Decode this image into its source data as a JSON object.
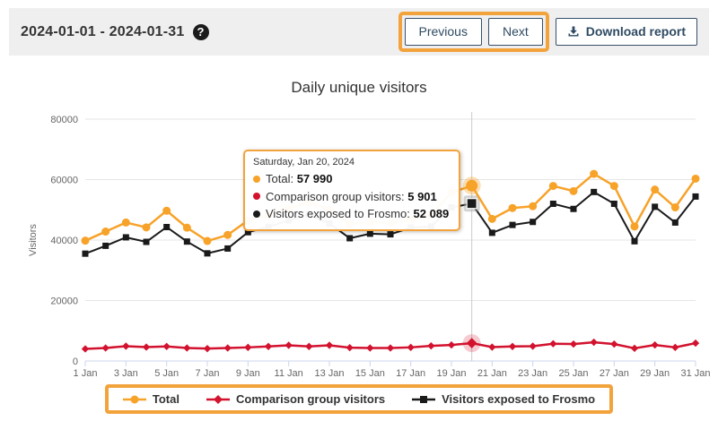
{
  "header": {
    "date_range": "2024-01-01 - 2024-01-31",
    "help_icon": "?",
    "previous_label": "Previous",
    "next_label": "Next",
    "download_label": "Download report"
  },
  "colors": {
    "accent_orange": "#F2A33C",
    "series_total": "#F7A229",
    "series_comparison": "#D2122E",
    "series_frosmo": "#1A1A1A",
    "grid": "#E6E6E6",
    "axis_line": "#CCD6EB",
    "crosshair": "#CCCCCC",
    "tick_text": "#666666"
  },
  "chart_data": {
    "type": "line",
    "title": "Daily unique visitors",
    "xlabel": "",
    "ylabel": "Visitors",
    "ylim": [
      0,
      80000
    ],
    "yticks": [
      0,
      20000,
      40000,
      60000,
      80000
    ],
    "grid": true,
    "legend_position": "bottom",
    "highlight_index": 19,
    "categories": [
      "1 Jan",
      "2 Jan",
      "3 Jan",
      "4 Jan",
      "5 Jan",
      "6 Jan",
      "7 Jan",
      "8 Jan",
      "9 Jan",
      "10 Jan",
      "11 Jan",
      "12 Jan",
      "13 Jan",
      "14 Jan",
      "15 Jan",
      "16 Jan",
      "17 Jan",
      "18 Jan",
      "19 Jan",
      "20 Jan",
      "21 Jan",
      "22 Jan",
      "23 Jan",
      "24 Jan",
      "25 Jan",
      "26 Jan",
      "27 Jan",
      "28 Jan",
      "29 Jan",
      "30 Jan",
      "31 Jan"
    ],
    "series": [
      {
        "name": "Total",
        "color": "#F7A229",
        "marker": "circle",
        "values": [
          39800,
          42800,
          45800,
          44200,
          49700,
          44100,
          39700,
          41700,
          46500,
          48300,
          50500,
          52500,
          50000,
          45300,
          46000,
          45700,
          46800,
          48300,
          55700,
          57990,
          47000,
          50600,
          51200,
          57900,
          56200,
          61900,
          57900,
          44500,
          56700,
          50800,
          60300
        ]
      },
      {
        "name": "Comparison group visitors",
        "color": "#D2122E",
        "marker": "diamond",
        "values": [
          4000,
          4300,
          4900,
          4600,
          4800,
          4300,
          4100,
          4300,
          4500,
          4800,
          5200,
          4800,
          5200,
          4400,
          4300,
          4300,
          4500,
          5000,
          5300,
          5901,
          4600,
          4800,
          4900,
          5700,
          5600,
          6200,
          5600,
          4200,
          5300,
          4500,
          5900
        ]
      },
      {
        "name": "Visitors exposed to Frosmo",
        "color": "#1A1A1A",
        "marker": "square",
        "values": [
          35500,
          38100,
          40900,
          39400,
          44300,
          39500,
          35600,
          37200,
          42600,
          44400,
          46500,
          48500,
          45500,
          40600,
          42100,
          41900,
          44100,
          44500,
          50800,
          52089,
          42400,
          45000,
          46000,
          52000,
          50300,
          55900,
          52000,
          39600,
          51000,
          45800,
          54400
        ]
      }
    ]
  },
  "tooltip": {
    "date": "Saturday, Jan 20, 2024",
    "rows": [
      {
        "label": "Total",
        "value": "57 990",
        "color": "#F7A229"
      },
      {
        "label": "Comparison group visitors",
        "value": "5 901",
        "color": "#D2122E"
      },
      {
        "label": "Visitors exposed to Frosmo",
        "value": "52 089",
        "color": "#1A1A1A"
      }
    ]
  },
  "legend": {
    "items": [
      {
        "label": "Total",
        "marker": "circle",
        "color": "#F7A229"
      },
      {
        "label": "Comparison group visitors",
        "marker": "diamond",
        "color": "#D2122E"
      },
      {
        "label": "Visitors exposed to Frosmo",
        "marker": "square",
        "color": "#1A1A1A"
      }
    ]
  }
}
